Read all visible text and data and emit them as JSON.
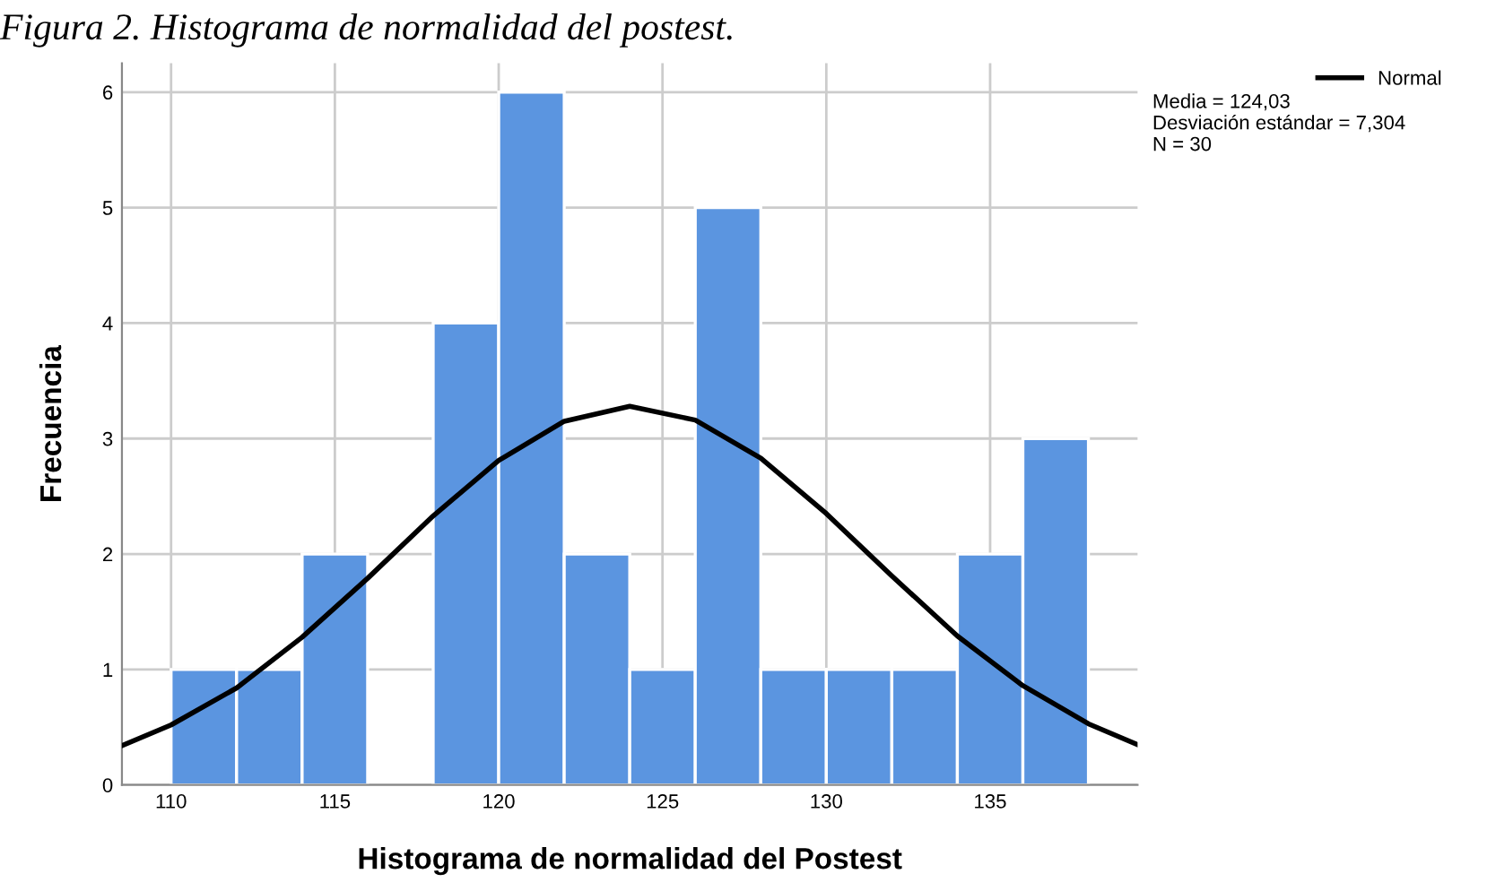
{
  "chart_data": {
    "type": "histogram",
    "title": "Figura 2. Histograma de normalidad del postest.",
    "xlabel": "Histograma de normalidad del Postest",
    "ylabel": "Frecuencia",
    "bins": [
      110,
      112,
      114,
      116,
      118,
      120,
      122,
      124,
      126,
      128,
      130,
      132,
      134,
      136,
      138
    ],
    "values": [
      1,
      1,
      2,
      0,
      4,
      6,
      2,
      1,
      5,
      1,
      1,
      1,
      2,
      3
    ],
    "color": "#5b95e0",
    "series": [
      {
        "name": "Normal",
        "type": "line",
        "color": "#000000",
        "x": [
          108.5,
          110,
          112,
          114,
          116,
          118,
          120,
          122,
          124,
          126,
          128,
          130,
          132,
          134,
          136,
          138,
          139.5
        ],
        "values": [
          0.34,
          0.52,
          0.84,
          1.28,
          1.79,
          2.33,
          2.81,
          3.15,
          3.28,
          3.16,
          2.83,
          2.35,
          1.81,
          1.29,
          0.86,
          0.53,
          0.35
        ]
      }
    ],
    "annotations": [
      "Media = 124,03",
      "Desviación estándar = 7,304",
      "N = 30"
    ],
    "xlim": [
      108.5,
      139.5
    ],
    "ylim": [
      0,
      6.25
    ],
    "xticks": [
      110,
      115,
      120,
      125,
      130,
      135
    ],
    "yticks": [
      0,
      1,
      2,
      3,
      4,
      5,
      6
    ],
    "grid": true,
    "legend": "top right"
  }
}
